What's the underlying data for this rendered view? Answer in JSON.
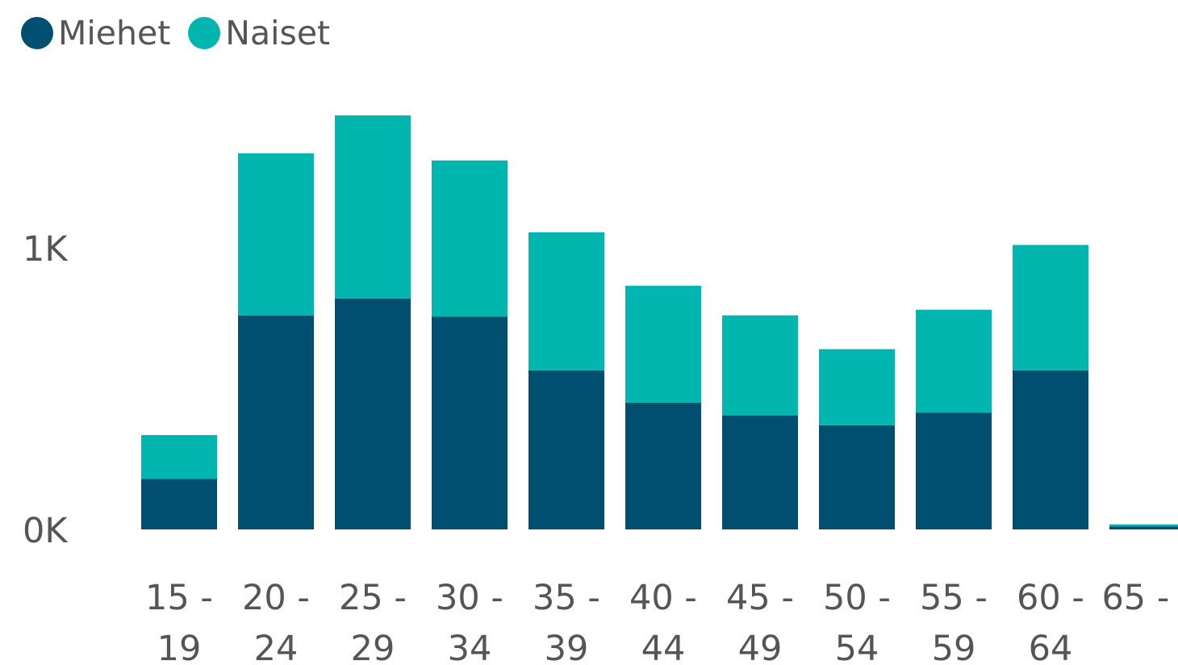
{
  "colors": {
    "miehet": "#004E70",
    "naiset": "#00B6AF"
  },
  "chart_data": {
    "type": "bar",
    "stacked": true,
    "categories": [
      "15 - 19",
      "20 - 24",
      "25 - 29",
      "30 - 34",
      "35 - 39",
      "40 - 44",
      "45 - 49",
      "50 - 54",
      "55 - 59",
      "60 - 64",
      "65 -"
    ],
    "series": [
      {
        "name": "Miehet",
        "values": [
          180,
          760,
          820,
          755,
          565,
          450,
          405,
          370,
          415,
          565,
          10
        ]
      },
      {
        "name": "Naiset",
        "values": [
          155,
          575,
          650,
          555,
          490,
          415,
          355,
          270,
          365,
          445,
          8
        ]
      }
    ],
    "y_ticks": [
      "0K",
      "1K"
    ],
    "ylim": [
      0,
      1500
    ],
    "grid": false,
    "legend_position": "top-left"
  }
}
